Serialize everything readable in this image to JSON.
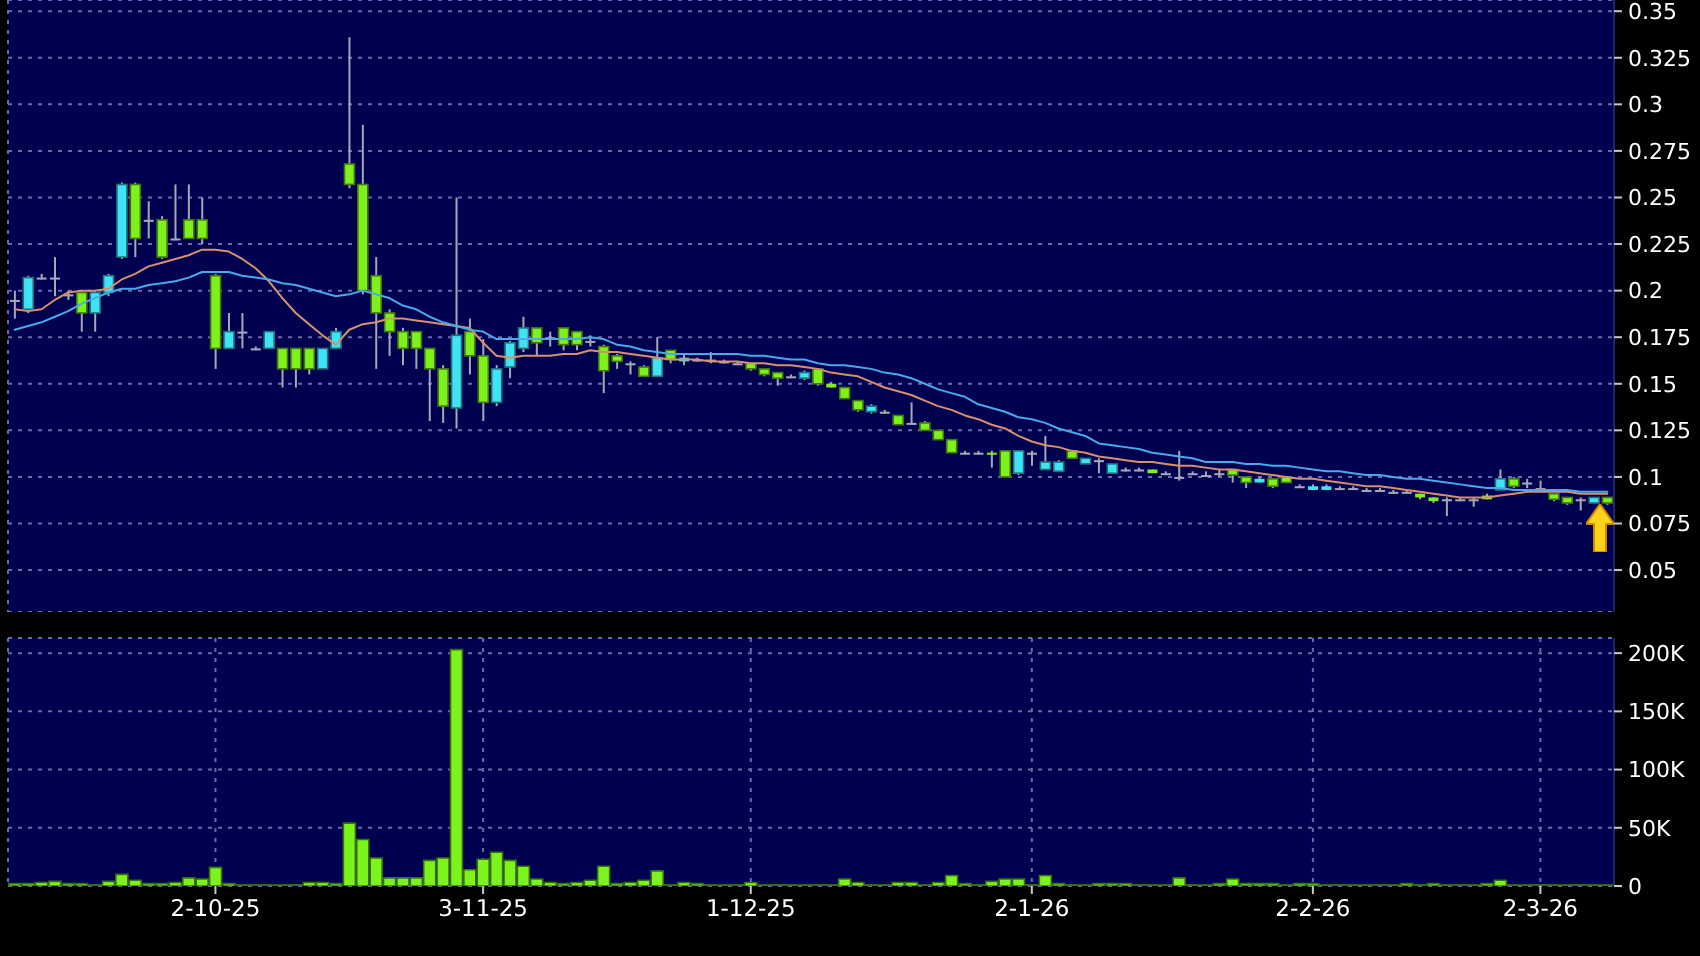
{
  "chart_data": [
    {
      "type": "candlestick",
      "categories": [
        null,
        null,
        null,
        null,
        null,
        null,
        null,
        null,
        null,
        null,
        null,
        null,
        null,
        null,
        null,
        null,
        null,
        null,
        null,
        null,
        null,
        null,
        null,
        null,
        null,
        null,
        null,
        null,
        null,
        null,
        null,
        null,
        null,
        null,
        null,
        null,
        null,
        null,
        null,
        null,
        null,
        null,
        null,
        null,
        null,
        null,
        null,
        null,
        null,
        null,
        null,
        null,
        null,
        null,
        null,
        null,
        null,
        null,
        null,
        null,
        null,
        null,
        null,
        null,
        null,
        null,
        null,
        null,
        null,
        null,
        null,
        null,
        null,
        null,
        null,
        null,
        null,
        null,
        null,
        null,
        null,
        null,
        null,
        null,
        null,
        null,
        null,
        null,
        null,
        null,
        null,
        null,
        null,
        null,
        null,
        null,
        null,
        null,
        null,
        null,
        null,
        null,
        null,
        null,
        null,
        null,
        null,
        null,
        null,
        null,
        null,
        null,
        null,
        null,
        null,
        null,
        null,
        null,
        null,
        null
      ],
      "ohlc": [
        [
          0.195,
          0.2,
          0.185,
          0.195
        ],
        [
          0.19,
          0.208,
          0.188,
          0.207
        ],
        [
          0.207,
          0.209,
          0.206,
          0.207
        ],
        [
          0.207,
          0.218,
          0.197,
          0.207
        ],
        [
          0.198,
          0.2,
          0.195,
          0.198
        ],
        [
          0.199,
          0.2,
          0.178,
          0.188
        ],
        [
          0.188,
          0.2,
          0.178,
          0.199
        ],
        [
          0.199,
          0.209,
          0.197,
          0.208
        ],
        [
          0.218,
          0.258,
          0.217,
          0.257
        ],
        [
          0.257,
          0.258,
          0.218,
          0.228
        ],
        [
          0.238,
          0.248,
          0.228,
          0.238
        ],
        [
          0.238,
          0.24,
          0.217,
          0.218
        ],
        [
          0.228,
          0.257,
          0.227,
          0.228
        ],
        [
          0.238,
          0.257,
          0.228,
          0.228
        ],
        [
          0.238,
          0.25,
          0.225,
          0.228
        ],
        [
          0.208,
          0.209,
          0.158,
          0.169
        ],
        [
          0.169,
          0.188,
          0.169,
          0.178
        ],
        [
          0.178,
          0.188,
          0.169,
          0.178
        ],
        [
          0.169,
          0.17,
          0.168,
          0.169
        ],
        [
          0.169,
          0.178,
          0.169,
          0.178
        ],
        [
          0.169,
          0.169,
          0.148,
          0.158
        ],
        [
          0.169,
          0.169,
          0.148,
          0.158
        ],
        [
          0.169,
          0.169,
          0.155,
          0.158
        ],
        [
          0.158,
          0.169,
          0.158,
          0.169
        ],
        [
          0.169,
          0.18,
          0.169,
          0.178
        ],
        [
          0.268,
          0.336,
          0.255,
          0.257
        ],
        [
          0.257,
          0.289,
          0.198,
          0.2
        ],
        [
          0.208,
          0.218,
          0.158,
          0.188
        ],
        [
          0.188,
          0.19,
          0.165,
          0.178
        ],
        [
          0.178,
          0.18,
          0.16,
          0.169
        ],
        [
          0.178,
          0.178,
          0.158,
          0.169
        ],
        [
          0.169,
          0.169,
          0.13,
          0.158
        ],
        [
          0.158,
          0.16,
          0.129,
          0.138
        ],
        [
          0.137,
          0.25,
          0.126,
          0.176
        ],
        [
          0.178,
          0.185,
          0.155,
          0.165
        ],
        [
          0.165,
          0.174,
          0.13,
          0.14
        ],
        [
          0.14,
          0.16,
          0.138,
          0.158
        ],
        [
          0.159,
          0.173,
          0.153,
          0.172
        ],
        [
          0.169,
          0.186,
          0.167,
          0.18
        ],
        [
          0.18,
          0.18,
          0.165,
          0.172
        ],
        [
          0.175,
          0.178,
          0.17,
          0.175
        ],
        [
          0.18,
          0.18,
          0.168,
          0.171
        ],
        [
          0.178,
          0.178,
          0.168,
          0.171
        ],
        [
          0.173,
          0.176,
          0.17,
          0.173
        ],
        [
          0.17,
          0.171,
          0.145,
          0.157
        ],
        [
          0.165,
          0.166,
          0.158,
          0.162
        ],
        [
          0.161,
          0.162,
          0.155,
          0.161
        ],
        [
          0.159,
          0.16,
          0.154,
          0.154
        ],
        [
          0.154,
          0.175,
          0.154,
          0.164
        ],
        [
          0.168,
          0.168,
          0.161,
          0.163
        ],
        [
          0.162,
          0.166,
          0.16,
          0.164
        ],
        [
          0.163,
          0.164,
          0.162,
          0.163
        ],
        [
          0.163,
          0.167,
          0.161,
          0.163
        ],
        [
          0.162,
          0.163,
          0.161,
          0.162
        ],
        [
          0.161,
          0.162,
          0.16,
          0.161
        ],
        [
          0.161,
          0.161,
          0.157,
          0.158
        ],
        [
          0.158,
          0.158,
          0.154,
          0.155
        ],
        [
          0.156,
          0.156,
          0.149,
          0.153
        ],
        [
          0.154,
          0.155,
          0.153,
          0.154
        ],
        [
          0.153,
          0.157,
          0.152,
          0.156
        ],
        [
          0.158,
          0.158,
          0.149,
          0.15
        ],
        [
          0.15,
          0.151,
          0.148,
          0.148
        ],
        [
          0.148,
          0.148,
          0.142,
          0.142
        ],
        [
          0.141,
          0.141,
          0.135,
          0.136
        ],
        [
          0.135,
          0.139,
          0.134,
          0.138
        ],
        [
          0.135,
          0.136,
          0.134,
          0.135
        ],
        [
          0.133,
          0.133,
          0.128,
          0.128
        ],
        [
          0.129,
          0.14,
          0.128,
          0.129
        ],
        [
          0.129,
          0.13,
          0.125,
          0.125
        ],
        [
          0.125,
          0.125,
          0.12,
          0.12
        ],
        [
          0.12,
          0.12,
          0.113,
          0.113
        ],
        [
          0.113,
          0.114,
          0.112,
          0.113
        ],
        [
          0.113,
          0.114,
          0.112,
          0.113
        ],
        [
          0.113,
          0.114,
          0.105,
          0.112
        ],
        [
          0.114,
          0.114,
          0.1,
          0.1
        ],
        [
          0.102,
          0.114,
          0.101,
          0.114
        ],
        [
          0.113,
          0.114,
          0.106,
          0.113
        ],
        [
          0.104,
          0.122,
          0.104,
          0.108
        ],
        [
          0.103,
          0.109,
          0.103,
          0.108
        ],
        [
          0.114,
          0.114,
          0.11,
          0.11
        ],
        [
          0.107,
          0.11,
          0.107,
          0.11
        ],
        [
          0.109,
          0.11,
          0.102,
          0.109
        ],
        [
          0.102,
          0.107,
          0.102,
          0.107
        ],
        [
          0.104,
          0.105,
          0.103,
          0.104
        ],
        [
          0.104,
          0.105,
          0.103,
          0.104
        ],
        [
          0.104,
          0.104,
          0.102,
          0.102
        ],
        [
          0.102,
          0.103,
          0.101,
          0.102
        ],
        [
          0.1,
          0.114,
          0.098,
          0.1
        ],
        [
          0.102,
          0.103,
          0.101,
          0.102
        ],
        [
          0.101,
          0.103,
          0.1,
          0.101
        ],
        [
          0.102,
          0.104,
          0.1,
          0.102
        ],
        [
          0.104,
          0.104,
          0.097,
          0.101
        ],
        [
          0.1,
          0.1,
          0.094,
          0.097
        ],
        [
          0.097,
          0.1,
          0.097,
          0.099
        ],
        [
          0.099,
          0.099,
          0.094,
          0.095
        ],
        [
          0.1,
          0.1,
          0.097,
          0.097
        ],
        [
          0.095,
          0.096,
          0.094,
          0.095
        ],
        [
          0.093,
          0.096,
          0.093,
          0.095
        ],
        [
          0.093,
          0.096,
          0.093,
          0.095
        ],
        [
          0.094,
          0.095,
          0.093,
          0.094
        ],
        [
          0.094,
          0.095,
          0.093,
          0.094
        ],
        [
          0.093,
          0.094,
          0.092,
          0.093
        ],
        [
          0.093,
          0.094,
          0.092,
          0.093
        ],
        [
          0.092,
          0.093,
          0.091,
          0.092
        ],
        [
          0.092,
          0.093,
          0.091,
          0.092
        ],
        [
          0.091,
          0.091,
          0.088,
          0.089
        ],
        [
          0.089,
          0.089,
          0.086,
          0.087
        ],
        [
          0.088,
          0.089,
          0.079,
          0.088
        ],
        [
          0.088,
          0.089,
          0.087,
          0.088
        ],
        [
          0.088,
          0.089,
          0.084,
          0.088
        ],
        [
          0.09,
          0.091,
          0.088,
          0.088
        ],
        [
          0.093,
          0.104,
          0.093,
          0.099
        ],
        [
          0.099,
          0.1,
          0.094,
          0.095
        ],
        [
          0.097,
          0.099,
          0.094,
          0.097
        ],
        [
          0.094,
          0.098,
          0.093,
          0.094
        ],
        [
          0.091,
          0.091,
          0.087,
          0.088
        ],
        [
          0.089,
          0.089,
          0.085,
          0.086
        ],
        [
          0.088,
          0.089,
          0.082,
          0.088
        ],
        [
          0.086,
          0.089,
          0.086,
          0.089
        ],
        [
          0.089,
          0.089,
          0.085,
          0.086
        ]
      ],
      "colors": [
        "#a8a8b8",
        "#3ee4f4",
        "#a8a8b8",
        "#a8a8b8",
        "#a8a8b8",
        "#7ef01c",
        "#3ee4f4",
        "#3ee4f4",
        "#3ee4f4",
        "#7ef01c",
        "#a8a8b8",
        "#7ef01c",
        "#a8a8b8",
        "#7ef01c",
        "#7ef01c",
        "#7ef01c",
        "#3ee4f4",
        "#a8a8b8",
        "#a8a8b8",
        "#3ee4f4",
        "#7ef01c",
        "#7ef01c",
        "#7ef01c",
        "#3ee4f4",
        "#3ee4f4",
        "#7ef01c",
        "#7ef01c",
        "#7ef01c",
        "#7ef01c",
        "#7ef01c",
        "#7ef01c",
        "#7ef01c",
        "#7ef01c",
        "#3ee4f4",
        "#7ef01c",
        "#7ef01c",
        "#3ee4f4",
        "#3ee4f4",
        "#3ee4f4",
        "#7ef01c",
        "#a8a8b8",
        "#7ef01c",
        "#7ef01c",
        "#a8a8b8",
        "#7ef01c",
        "#7ef01c",
        "#a8a8b8",
        "#7ef01c",
        "#3ee4f4",
        "#7ef01c",
        "#3ee4f4",
        "#a8a8b8",
        "#a8a8b8",
        "#a8a8b8",
        "#a8a8b8",
        "#7ef01c",
        "#7ef01c",
        "#7ef01c",
        "#a8a8b8",
        "#3ee4f4",
        "#7ef01c",
        "#7ef01c",
        "#7ef01c",
        "#7ef01c",
        "#3ee4f4",
        "#a8a8b8",
        "#7ef01c",
        "#a8a8b8",
        "#7ef01c",
        "#7ef01c",
        "#7ef01c",
        "#a8a8b8",
        "#a8a8b8",
        "#7ef01c",
        "#7ef01c",
        "#3ee4f4",
        "#a8a8b8",
        "#3ee4f4",
        "#3ee4f4",
        "#7ef01c",
        "#3ee4f4",
        "#a8a8b8",
        "#3ee4f4",
        "#a8a8b8",
        "#a8a8b8",
        "#7ef01c",
        "#a8a8b8",
        "#a8a8b8",
        "#a8a8b8",
        "#a8a8b8",
        "#a8a8b8",
        "#7ef01c",
        "#7ef01c",
        "#3ee4f4",
        "#7ef01c",
        "#7ef01c",
        "#a8a8b8",
        "#3ee4f4",
        "#3ee4f4",
        "#a8a8b8",
        "#a8a8b8",
        "#a8a8b8",
        "#a8a8b8",
        "#a8a8b8",
        "#a8a8b8",
        "#7ef01c",
        "#7ef01c",
        "#a8a8b8",
        "#a8a8b8",
        "#a8a8b8",
        "#7ef01c",
        "#3ee4f4",
        "#7ef01c",
        "#a8a8b8",
        "#a8a8b8",
        "#7ef01c",
        "#7ef01c",
        "#a8a8b8",
        "#3ee4f4",
        "#7ef01c"
      ],
      "series": [
        {
          "type": "line",
          "color": "#d8906c",
          "values": [
            0.19,
            0.189,
            0.19,
            0.195,
            0.199,
            0.2,
            0.2,
            0.201,
            0.206,
            0.209,
            0.213,
            0.215,
            0.217,
            0.219,
            0.222,
            0.222,
            0.221,
            0.217,
            0.212,
            0.205,
            0.196,
            0.188,
            0.182,
            0.176,
            0.171,
            0.179,
            0.182,
            0.183,
            0.185,
            0.185,
            0.184,
            0.183,
            0.182,
            0.181,
            0.18,
            0.172,
            0.165,
            0.164,
            0.165,
            0.165,
            0.165,
            0.166,
            0.166,
            0.168,
            0.167,
            0.167,
            0.166,
            0.165,
            0.164,
            0.163,
            0.163,
            0.163,
            0.162,
            0.162,
            0.162,
            0.161,
            0.161,
            0.16,
            0.16,
            0.159,
            0.158,
            0.156,
            0.155,
            0.154,
            0.151,
            0.148,
            0.146,
            0.144,
            0.141,
            0.138,
            0.136,
            0.133,
            0.131,
            0.128,
            0.126,
            0.122,
            0.119,
            0.117,
            0.116,
            0.114,
            0.113,
            0.111,
            0.11,
            0.109,
            0.108,
            0.108,
            0.107,
            0.106,
            0.106,
            0.105,
            0.104,
            0.104,
            0.103,
            0.102,
            0.101,
            0.1,
            0.099,
            0.099,
            0.098,
            0.097,
            0.096,
            0.095,
            0.095,
            0.094,
            0.093,
            0.092,
            0.091,
            0.09,
            0.089,
            0.089,
            0.089,
            0.09,
            0.091,
            0.092,
            0.092,
            0.092,
            0.092,
            0.091,
            0.091,
            0.091
          ]
        },
        {
          "type": "line",
          "color": "#4aa8ec",
          "values": [
            0.179,
            0.181,
            0.183,
            0.186,
            0.189,
            0.193,
            0.196,
            0.199,
            0.201,
            0.201,
            0.203,
            0.204,
            0.205,
            0.207,
            0.21,
            0.21,
            0.21,
            0.208,
            0.207,
            0.206,
            0.204,
            0.203,
            0.201,
            0.199,
            0.197,
            0.198,
            0.2,
            0.198,
            0.196,
            0.192,
            0.19,
            0.186,
            0.183,
            0.181,
            0.179,
            0.178,
            0.174,
            0.174,
            0.174,
            0.174,
            0.174,
            0.174,
            0.174,
            0.175,
            0.174,
            0.171,
            0.17,
            0.168,
            0.167,
            0.166,
            0.166,
            0.166,
            0.166,
            0.166,
            0.166,
            0.165,
            0.165,
            0.164,
            0.163,
            0.163,
            0.161,
            0.16,
            0.16,
            0.159,
            0.158,
            0.156,
            0.155,
            0.153,
            0.15,
            0.147,
            0.145,
            0.143,
            0.139,
            0.137,
            0.135,
            0.132,
            0.131,
            0.129,
            0.126,
            0.124,
            0.122,
            0.118,
            0.117,
            0.116,
            0.115,
            0.113,
            0.112,
            0.111,
            0.11,
            0.108,
            0.108,
            0.108,
            0.107,
            0.107,
            0.106,
            0.106,
            0.105,
            0.104,
            0.103,
            0.103,
            0.102,
            0.101,
            0.101,
            0.1,
            0.099,
            0.099,
            0.098,
            0.097,
            0.096,
            0.095,
            0.094,
            0.094,
            0.093,
            0.093,
            0.093,
            0.093,
            0.093,
            0.092,
            0.092,
            0.092
          ]
        }
      ],
      "ylim": [
        0.0275,
        0.356
      ],
      "yticks": [
        0.05,
        0.075,
        0.1,
        0.125,
        0.15,
        0.175,
        0.2,
        0.225,
        0.25,
        0.275,
        0.3,
        0.325,
        0.35
      ],
      "grid": true,
      "tick_labels": "y"
    },
    {
      "type": "bar",
      "categories": [
        null,
        null,
        null,
        null,
        null,
        null,
        null,
        null,
        null,
        null,
        null,
        null,
        null,
        null,
        null,
        "2-10-25",
        null,
        null,
        null,
        null,
        null,
        null,
        null,
        null,
        null,
        null,
        null,
        null,
        null,
        null,
        null,
        null,
        null,
        null,
        null,
        "3-11-25",
        null,
        null,
        null,
        null,
        null,
        null,
        null,
        null,
        null,
        null,
        null,
        null,
        null,
        null,
        null,
        null,
        null,
        null,
        null,
        "1-12-25",
        null,
        null,
        null,
        null,
        null,
        null,
        null,
        null,
        null,
        null,
        null,
        null,
        null,
        null,
        null,
        null,
        null,
        null,
        null,
        null,
        "2-1-26",
        null,
        null,
        null,
        null,
        null,
        null,
        null,
        null,
        null,
        null,
        null,
        null,
        null,
        null,
        null,
        null,
        null,
        null,
        null,
        null,
        "2-2-26",
        null,
        null,
        null,
        null,
        null,
        null,
        null,
        null,
        null,
        null,
        null,
        null,
        null,
        null,
        null,
        null,
        "2-3-26",
        null,
        null,
        null,
        null,
        null
      ],
      "values": [
        2000,
        2000,
        3000,
        4000,
        2000,
        2000,
        1000,
        4000,
        10000,
        5000,
        2000,
        2000,
        3000,
        7000,
        6000,
        16000,
        2000,
        1000,
        1000,
        1000,
        1000,
        1000,
        3000,
        3000,
        2000,
        54000,
        40000,
        24000,
        7000,
        7000,
        7000,
        22000,
        24000,
        203000,
        14000,
        23000,
        29000,
        22000,
        17000,
        6000,
        3000,
        2000,
        3000,
        5000,
        17000,
        2000,
        3000,
        5000,
        13000,
        1000,
        3000,
        2000,
        1000,
        1000,
        1000,
        3000,
        1000,
        1000,
        1000,
        1000,
        1000,
        1000,
        6000,
        3000,
        1000,
        1000,
        3000,
        3000,
        1000,
        3000,
        9000,
        2000,
        1000,
        4000,
        6000,
        6000,
        1000,
        9000,
        2000,
        1000,
        1000,
        2000,
        2000,
        2000,
        1000,
        1000,
        1000,
        7000,
        1000,
        1000,
        2000,
        6000,
        2000,
        2000,
        2000,
        1000,
        2000,
        2000,
        1000,
        1000,
        1000,
        1000,
        1000,
        1000,
        2000,
        1000,
        2000,
        1000,
        1000,
        1000,
        2000,
        5000,
        1000,
        1000,
        1000,
        1000,
        1000,
        1000,
        1000,
        1000
      ],
      "color": "#7cf41c",
      "ylim": [
        0,
        213000
      ],
      "yticks": [
        0,
        {
          "value": 50000,
          "label": "50K"
        },
        {
          "value": 100000,
          "label": "100K"
        },
        {
          "value": 150000,
          "label": "150K"
        },
        {
          "value": 200000,
          "label": "200K"
        }
      ],
      "grid": true
    }
  ]
}
